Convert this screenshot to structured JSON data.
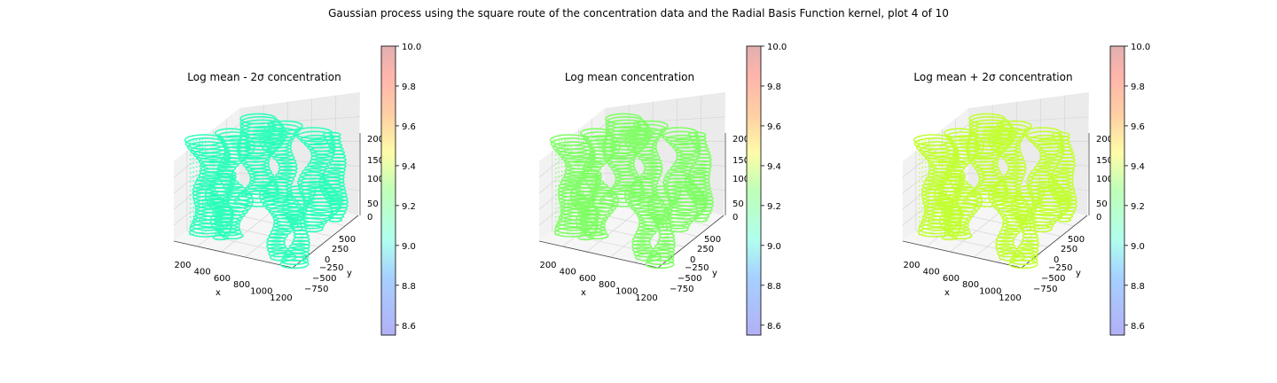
{
  "suptitle": "Gaussian process using the square route of the concentration data and the Radial Basis Function kernel, plot 4 of 10",
  "chart_data": [
    {
      "type": "3d-contour",
      "title": "Log mean - 2σ concentration",
      "xlabel": "x",
      "ylabel": "y",
      "zlabel": "",
      "x_ticks": [
        "200",
        "400",
        "600",
        "800",
        "1000",
        "1200"
      ],
      "y_ticks": [
        "−750",
        "−500",
        "−250",
        "0",
        "250",
        "500"
      ],
      "z_ticks": [
        "0",
        "50",
        "100",
        "150",
        "200"
      ],
      "approx_log_value": 9.18,
      "surface_color": "#2effbb",
      "colorbar": {
        "ticks": [
          "8.6",
          "8.8",
          "9.0",
          "9.2",
          "9.4",
          "9.6",
          "9.8",
          "10.0"
        ],
        "range": [
          8.55,
          10.0
        ]
      }
    },
    {
      "type": "3d-contour",
      "title": "Log mean concentration",
      "xlabel": "x",
      "ylabel": "y",
      "zlabel": "",
      "x_ticks": [
        "200",
        "400",
        "600",
        "800",
        "1000",
        "1200"
      ],
      "y_ticks": [
        "−750",
        "−500",
        "−250",
        "0",
        "250",
        "500"
      ],
      "z_ticks": [
        "0",
        "50",
        "100",
        "150",
        "200"
      ],
      "approx_log_value": 9.28,
      "surface_color": "#80ff66",
      "colorbar": {
        "ticks": [
          "8.6",
          "8.8",
          "9.0",
          "9.2",
          "9.4",
          "9.6",
          "9.8",
          "10.0"
        ],
        "range": [
          8.55,
          10.0
        ]
      }
    },
    {
      "type": "3d-contour",
      "title": "Log mean + 2σ concentration",
      "xlabel": "x",
      "ylabel": "y",
      "zlabel": "",
      "x_ticks": [
        "200",
        "400",
        "600",
        "800",
        "1000",
        "1200"
      ],
      "y_ticks": [
        "−750",
        "−500",
        "−250",
        "0",
        "250",
        "500"
      ],
      "z_ticks": [
        "0",
        "50",
        "100",
        "150",
        "200"
      ],
      "approx_log_value": 9.36,
      "surface_color": "#c2ff33",
      "colorbar": {
        "ticks": [
          "8.6",
          "8.8",
          "9.0",
          "9.2",
          "9.4",
          "9.6",
          "9.8",
          "10.0"
        ],
        "range": [
          8.55,
          10.0
        ]
      }
    }
  ]
}
